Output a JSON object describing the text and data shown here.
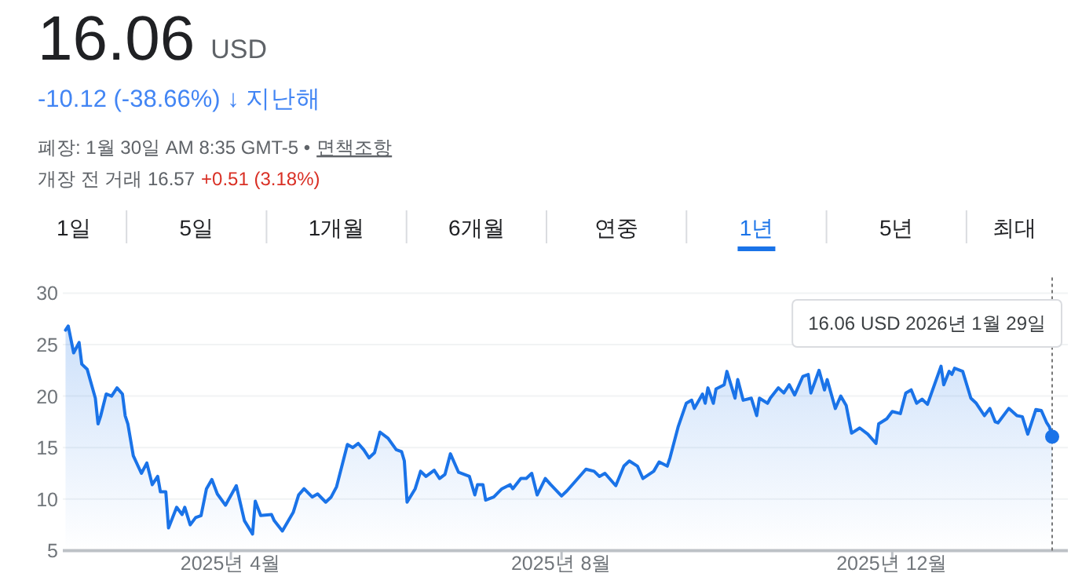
{
  "chart_data": {
    "type": "area",
    "title": "16.06",
    "subtitle": "USD",
    "annotations": [
      "-10.12 (-38.66%) ↓ 지난해",
      "폐장: 1월 30일 AM 8:35 GMT-5 •",
      "면책조항",
      "개장 전 거래 16.57",
      "+0.51 (3.18%)",
      "1일",
      "5일",
      "1개월",
      "6개월",
      "연중",
      "1년",
      "5년",
      "최대",
      "16.06 USD  2026년 1월 29일"
    ],
    "x": [
      "2025-01-30",
      "2025-01-31",
      "2025-02-02",
      "2025-02-04",
      "2025-02-05",
      "2025-02-07",
      "2025-02-10",
      "2025-02-11",
      "2025-02-12",
      "2025-02-14",
      "2025-02-16",
      "2025-02-18",
      "2025-02-20",
      "2025-02-21",
      "2025-02-22",
      "2025-02-24",
      "2025-02-27",
      "2025-03-01",
      "2025-03-03",
      "2025-03-05",
      "2025-03-06",
      "2025-03-08",
      "2025-03-09",
      "2025-03-12",
      "2025-03-14",
      "2025-03-15",
      "2025-03-17",
      "2025-03-19",
      "2025-03-21",
      "2025-03-23",
      "2025-03-25",
      "2025-03-27",
      "2025-03-30",
      "2025-04-03",
      "2025-04-06",
      "2025-04-09",
      "2025-04-10",
      "2025-04-12",
      "2025-04-16",
      "2025-04-17",
      "2025-04-20",
      "2025-04-24",
      "2025-04-26",
      "2025-04-28",
      "2025-05-01",
      "2025-05-03",
      "2025-05-06",
      "2025-05-08",
      "2025-05-10",
      "2025-05-14",
      "2025-05-16",
      "2025-05-18",
      "2025-05-20",
      "2025-05-22",
      "2025-05-24",
      "2025-05-26",
      "2025-05-29",
      "2025-06-01",
      "2025-06-03",
      "2025-06-04",
      "2025-06-05",
      "2025-06-08",
      "2025-06-10",
      "2025-06-12",
      "2025-06-15",
      "2025-06-17",
      "2025-06-19",
      "2025-06-21",
      "2025-06-24",
      "2025-06-28",
      "2025-06-30",
      "2025-07-01",
      "2025-07-03",
      "2025-07-04",
      "2025-07-07",
      "2025-07-10",
      "2025-07-13",
      "2025-07-14",
      "2025-07-17",
      "2025-07-19",
      "2025-07-21",
      "2025-07-23",
      "2025-07-26",
      "2025-07-28",
      "2025-08-01",
      "2025-08-03",
      "2025-08-06",
      "2025-08-10",
      "2025-08-13",
      "2025-08-15",
      "2025-08-17",
      "2025-08-21",
      "2025-08-24",
      "2025-08-26",
      "2025-08-29",
      "2025-08-31",
      "2025-09-04",
      "2025-09-06",
      "2025-09-09",
      "2025-09-10",
      "2025-09-13",
      "2025-09-16",
      "2025-09-18",
      "2025-09-19",
      "2025-09-22",
      "2025-09-23",
      "2025-09-24",
      "2025-09-26",
      "2025-09-27",
      "2025-09-30",
      "2025-10-01",
      "2025-10-04",
      "2025-10-05",
      "2025-10-07",
      "2025-10-10",
      "2025-10-12",
      "2025-10-13",
      "2025-10-16",
      "2025-10-17",
      "2025-10-20",
      "2025-10-22",
      "2025-10-24",
      "2025-10-26",
      "2025-10-29",
      "2025-10-31",
      "2025-11-01",
      "2025-11-04",
      "2025-11-06",
      "2025-11-07",
      "2025-11-10",
      "2025-11-12",
      "2025-11-14",
      "2025-11-16",
      "2025-11-19",
      "2025-11-22",
      "2025-11-25",
      "2025-11-26",
      "2025-11-29",
      "2025-12-01",
      "2025-12-04",
      "2025-12-06",
      "2025-12-08",
      "2025-12-10",
      "2025-12-12",
      "2025-12-14",
      "2025-12-19",
      "2025-12-20",
      "2025-12-22",
      "2025-12-23",
      "2025-12-24",
      "2025-12-27",
      "2025-12-30",
      "2026-01-01",
      "2026-01-04",
      "2026-01-06",
      "2026-01-08",
      "2026-01-09",
      "2026-01-13",
      "2026-01-16",
      "2026-01-18",
      "2026-01-20",
      "2026-01-23",
      "2026-01-25",
      "2026-01-27",
      "2026-01-28",
      "2026-01-29"
    ],
    "series": [
      {
        "color": "#1a73e8",
        "values": [
          26.4,
          26.8,
          24.2,
          25.2,
          23.1,
          22.6,
          19.8,
          17.3,
          18.1,
          20.2,
          20.0,
          20.8,
          20.2,
          18.1,
          17.3,
          14.2,
          12.5,
          13.5,
          11.4,
          12.2,
          10.7,
          10.7,
          7.2,
          9.2,
          8.5,
          9.2,
          7.5,
          8.2,
          8.4,
          11.0,
          11.9,
          10.5,
          9.4,
          11.3,
          7.9,
          6.6,
          9.8,
          8.4,
          8.5,
          7.9,
          6.9,
          8.7,
          10.4,
          11.0,
          10.2,
          10.5,
          9.7,
          10.2,
          11.2,
          15.3,
          15.0,
          15.4,
          14.8,
          14.0,
          14.5,
          16.5,
          15.9,
          14.8,
          14.6,
          13.7,
          9.7,
          11.0,
          12.7,
          12.2,
          12.8,
          12.0,
          12.4,
          14.4,
          12.6,
          12.2,
          10.4,
          11.4,
          11.4,
          9.9,
          10.2,
          11.0,
          11.4,
          11.0,
          12.0,
          12.0,
          12.5,
          10.4,
          12.0,
          11.4,
          10.3,
          10.8,
          11.7,
          12.9,
          12.7,
          12.2,
          12.5,
          11.3,
          13.2,
          13.7,
          13.2,
          12.0,
          12.7,
          13.6,
          13.2,
          14.0,
          17.0,
          19.3,
          19.6,
          18.8,
          20.2,
          19.3,
          20.8,
          19.3,
          20.7,
          21.1,
          22.4,
          19.8,
          21.6,
          19.6,
          19.8,
          18.1,
          19.8,
          19.3,
          19.8,
          20.8,
          20.3,
          21.1,
          20.1,
          21.9,
          22.1,
          20.3,
          22.5,
          20.6,
          21.6,
          18.8,
          20.0,
          19.1,
          16.4,
          16.9,
          16.3,
          15.4,
          17.3,
          17.8,
          18.5,
          18.3,
          20.3,
          20.6,
          19.3,
          19.7,
          19.2,
          22.9,
          21.1,
          22.4,
          22.1,
          22.7,
          22.4,
          19.8,
          19.3,
          18.1,
          18.8,
          17.5,
          17.4,
          18.8,
          18.1,
          18.0,
          16.3,
          18.7,
          18.6,
          17.4,
          17.0,
          16.06
        ]
      }
    ],
    "xlim": [
      "2025-01-29",
      "2026-01-29"
    ],
    "xticks": [
      {
        "value": "2025-04-01",
        "label": "2025년 4월"
      },
      {
        "value": "2025-08-01",
        "label": "2025년 8월"
      },
      {
        "value": "2025-12-01",
        "label": "2025년 12월"
      }
    ],
    "ylim": [
      5,
      30
    ],
    "yticks": [
      5,
      10,
      15,
      20,
      25,
      30
    ],
    "grid": "y",
    "ref_lines": [
      {
        "axis": "x",
        "value": "2026-01-29",
        "color": "#777777",
        "line_style": "dotted"
      }
    ]
  }
}
